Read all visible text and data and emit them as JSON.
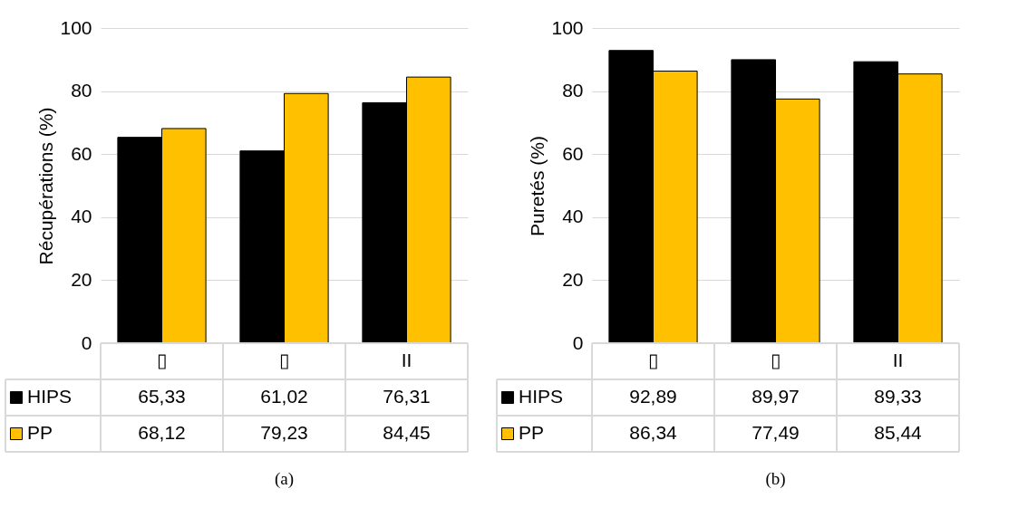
{
  "chart_data": [
    {
      "type": "bar",
      "ylabel": "Récupérations (%)",
      "categories": [
        "▯",
        "▯",
        "II"
      ],
      "ylim": [
        0,
        100
      ],
      "yticks": [
        0,
        20,
        40,
        60,
        80,
        100
      ],
      "grid": "y",
      "legend": "bottom",
      "annotations": [
        "(a)"
      ],
      "series": [
        {
          "name": "HIPS",
          "color": "#000000",
          "values": [
            65.33,
            61.02,
            76.31
          ],
          "value_labels": [
            "65,33",
            "61,02",
            "76,31"
          ]
        },
        {
          "name": "PP",
          "color": "#ffc000",
          "values": [
            68.12,
            79.23,
            84.45
          ],
          "value_labels": [
            "68,12",
            "79,23",
            "84,45"
          ]
        }
      ]
    },
    {
      "type": "bar",
      "ylabel": "Puretés (%)",
      "categories": [
        "▯",
        "▯",
        "II"
      ],
      "ylim": [
        0,
        100
      ],
      "yticks": [
        0,
        20,
        40,
        60,
        80,
        100
      ],
      "grid": "y",
      "legend": "bottom",
      "annotations": [
        "(b)"
      ],
      "series": [
        {
          "name": "HIPS",
          "color": "#000000",
          "values": [
            92.89,
            89.97,
            89.33
          ],
          "value_labels": [
            "92,89",
            "89,97",
            "89,33"
          ]
        },
        {
          "name": "PP",
          "color": "#ffc000",
          "values": [
            86.34,
            77.49,
            85.44
          ],
          "value_labels": [
            "86,34",
            "77,49",
            "85,44"
          ]
        }
      ]
    }
  ]
}
